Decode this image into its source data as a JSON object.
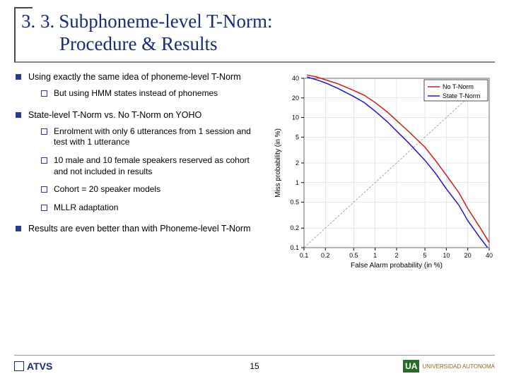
{
  "title": {
    "number": "3. 3.",
    "text_line1": "Subphoneme-level T-Norm:",
    "text_line2": "Procedure & Results"
  },
  "bullets": [
    {
      "text": "Using exactly the same idea of phoneme-level T-Norm",
      "sub": [
        "But using HMM states instead of phonemes"
      ]
    },
    {
      "text": "State-level T-Norm vs. No T-Norm on YOHO",
      "sub": [
        "Enrolment with only 6 utterances from 1 session and test with 1 utterance",
        "10 male and 10 female speakers reserved as cohort and not included in results",
        "Cohort = 20 speaker models",
        "MLLR adaptation"
      ]
    },
    {
      "text": "Results are even better than with Phoneme-level T-Norm",
      "sub": []
    }
  ],
  "chart": {
    "type": "line",
    "x_label": "False Alarm probability (in %)",
    "y_label": "Miss probability (in %)",
    "x_ticks": [
      "0.1",
      "0.2",
      "0.5",
      "1",
      "2",
      "5",
      "10",
      "20",
      "40"
    ],
    "y_ticks": [
      "0.1",
      "0.2",
      "0.5",
      "1",
      "2",
      "5",
      "10",
      "20",
      "40"
    ],
    "xlim": [
      0.1,
      40
    ],
    "ylim": [
      0.1,
      40
    ],
    "scale": "log",
    "grid": true,
    "grid_color": "#d0d0d0",
    "tick_color": "#b0b0b0",
    "axis_color": "#000000",
    "label_fontsize": 10,
    "tick_fontsize": 9,
    "legend": {
      "position": "top-right",
      "border_color": "#000000",
      "items": [
        {
          "label": "No T-Norm",
          "color": "#d01818"
        },
        {
          "label": "State T-Norm",
          "color": "#1818d0"
        }
      ]
    },
    "diagonal_color": "#808080",
    "series": [
      {
        "name": "No T-Norm",
        "color": "#d01818",
        "line_width": 1.5,
        "points": [
          [
            0.11,
            45
          ],
          [
            0.15,
            42
          ],
          [
            0.2,
            38
          ],
          [
            0.3,
            33
          ],
          [
            0.5,
            26
          ],
          [
            0.7,
            22
          ],
          [
            1,
            17
          ],
          [
            1.5,
            12
          ],
          [
            2,
            9
          ],
          [
            3,
            6
          ],
          [
            5,
            3.5
          ],
          [
            7,
            2.2
          ],
          [
            10,
            1.3
          ],
          [
            15,
            0.7
          ],
          [
            20,
            0.4
          ],
          [
            30,
            0.2
          ],
          [
            40,
            0.12
          ]
        ]
      },
      {
        "name": "State T-Norm",
        "color": "#1818d0",
        "line_width": 1.5,
        "points": [
          [
            0.11,
            42
          ],
          [
            0.15,
            38
          ],
          [
            0.2,
            34
          ],
          [
            0.3,
            28
          ],
          [
            0.5,
            21
          ],
          [
            0.7,
            17
          ],
          [
            1,
            12.5
          ],
          [
            1.5,
            8.5
          ],
          [
            2,
            6.2
          ],
          [
            3,
            4
          ],
          [
            5,
            2.2
          ],
          [
            7,
            1.4
          ],
          [
            10,
            0.8
          ],
          [
            15,
            0.45
          ],
          [
            20,
            0.26
          ],
          [
            30,
            0.14
          ],
          [
            38,
            0.1
          ]
        ]
      }
    ]
  },
  "footer": {
    "page": "15",
    "logo_left_text": "ATVS",
    "logo_right_brand": "UA",
    "logo_right_text": "UNIVERSIDAD AUTONOMA"
  },
  "colors": {
    "title_color": "#1a2a7a",
    "bullet_color": "#2a3a8a",
    "text_color": "#000000",
    "background": "#ffffff"
  }
}
